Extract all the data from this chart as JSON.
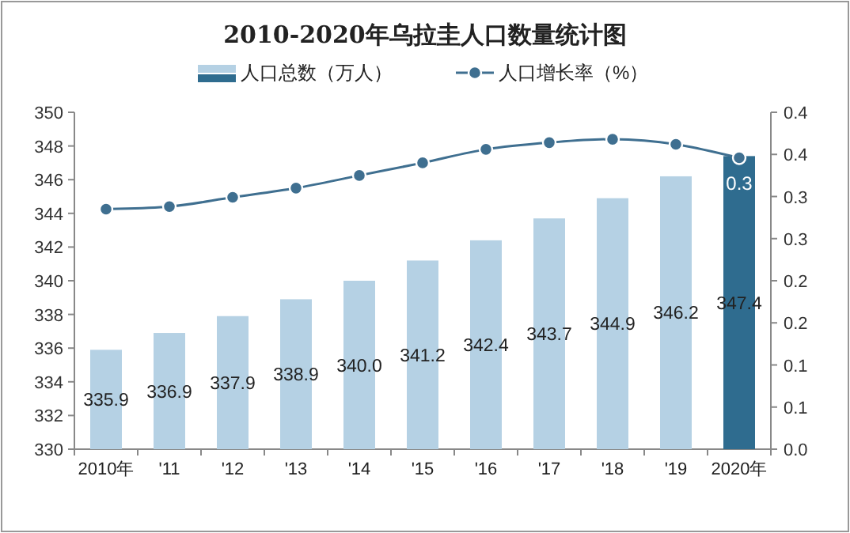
{
  "chart_data": {
    "type": "bar",
    "title": "2010-2020年乌拉圭人口数量统计图",
    "categories": [
      "2010年",
      "'11",
      "'12",
      "'13",
      "'14",
      "'15",
      "'16",
      "'17",
      "'18",
      "'19",
      "2020年"
    ],
    "series": [
      {
        "name": "人口总数（万人）",
        "colors": [
          "#b5d1e4",
          "#b5d1e4",
          "#b5d1e4",
          "#b5d1e4",
          "#b5d1e4",
          "#b5d1e4",
          "#b5d1e4",
          "#b5d1e4",
          "#b5d1e4",
          "#b5d1e4",
          "#2f6c8f"
        ],
        "color": "#b5d1e4",
        "values": [
          335.9,
          336.9,
          337.9,
          338.9,
          340.0,
          341.2,
          342.4,
          343.7,
          344.9,
          346.2,
          347.4
        ],
        "value_labels": [
          "335.9",
          "336.9",
          "337.9",
          "338.9",
          "340.0",
          "341.2",
          "342.4",
          "343.7",
          "344.9",
          "346.2",
          "347.4"
        ]
      },
      {
        "name": "人口增长率（%）",
        "type": "line",
        "axis": "y2",
        "color": "#3f6f90",
        "marker": "circle",
        "values": [
          0.285,
          0.288,
          0.299,
          0.31,
          0.325,
          0.34,
          0.356,
          0.364,
          0.368,
          0.362,
          0.346
        ],
        "value_labels": [
          null,
          null,
          null,
          null,
          null,
          null,
          null,
          null,
          null,
          null,
          "0.3"
        ]
      }
    ],
    "ylim": [
      330,
      350
    ],
    "yticks": [
      330,
      332,
      334,
      336,
      338,
      340,
      342,
      344,
      346,
      348,
      350
    ],
    "y2lim": [
      0,
      0.4
    ],
    "y2ticks": [
      {
        "value": 0,
        "label": "0.0"
      },
      {
        "value": 0.05,
        "label": "0.1"
      },
      {
        "value": 0.1,
        "label": "0.1"
      },
      {
        "value": 0.15,
        "label": "0.2"
      },
      {
        "value": 0.2,
        "label": "0.2"
      },
      {
        "value": 0.25,
        "label": "0.3"
      },
      {
        "value": 0.3,
        "label": "0.3"
      },
      {
        "value": 0.35,
        "label": "0.4"
      },
      {
        "value": 0.4,
        "label": "0.4"
      }
    ],
    "legend": "top",
    "grid": false
  }
}
